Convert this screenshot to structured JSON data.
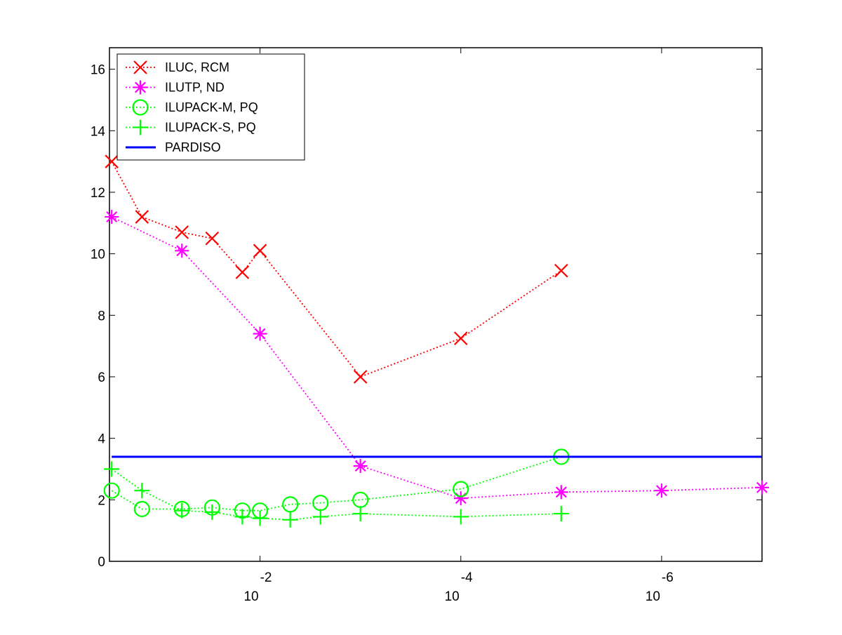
{
  "chart_data": {
    "type": "line",
    "x_scale": "log-reversed",
    "xlim": [
      0.316,
      1e-07
    ],
    "ylim": [
      0,
      16.7
    ],
    "grid": false,
    "legend_position": "top-left",
    "title": "",
    "xlabel": "",
    "ylabel": "",
    "x_ticks": [
      {
        "value": 0.01,
        "base": "10",
        "exponent": "-2"
      },
      {
        "value": 0.0001,
        "base": "10",
        "exponent": "-4"
      },
      {
        "value": 1e-06,
        "base": "10",
        "exponent": "-6"
      }
    ],
    "y_ticks": [
      0,
      2,
      4,
      6,
      8,
      10,
      12,
      14,
      16
    ],
    "y_tick_labels": [
      "0",
      "2",
      "4",
      "6",
      "8",
      "10",
      "12",
      "14",
      "16"
    ],
    "series": [
      {
        "name": "ILUC, RCM",
        "color": "#ff0000",
        "marker": "x",
        "line_style": "dotted",
        "x": [
          0.3,
          0.15,
          0.06,
          0.03,
          0.015,
          0.01,
          0.001,
          0.0001,
          1e-05
        ],
        "y": [
          13.0,
          11.2,
          10.7,
          10.5,
          9.4,
          10.1,
          6.0,
          7.25,
          9.45
        ]
      },
      {
        "name": "ILUTP,  ND",
        "color": "#ff00ff",
        "marker": "asterisk",
        "line_style": "dotted",
        "x": [
          0.3,
          0.06,
          0.01,
          0.001,
          0.0001,
          1e-05,
          1e-06,
          1e-07
        ],
        "y": [
          11.2,
          10.1,
          7.4,
          3.1,
          2.05,
          2.25,
          2.3,
          2.4
        ]
      },
      {
        "name": "ILUPACK-M, PQ",
        "color": "#00ff00",
        "marker": "circle",
        "line_style": "dotted",
        "x": [
          0.3,
          0.15,
          0.06,
          0.03,
          0.015,
          0.01,
          0.005,
          0.0025,
          0.001,
          0.0001,
          1e-05
        ],
        "y": [
          2.3,
          1.7,
          1.7,
          1.75,
          1.65,
          1.65,
          1.85,
          1.9,
          2.0,
          2.35,
          3.4
        ]
      },
      {
        "name": "ILUPACK-S, PQ",
        "color": "#00ff00",
        "marker": "plus",
        "line_style": "dotted",
        "x": [
          0.3,
          0.15,
          0.06,
          0.03,
          0.015,
          0.01,
          0.005,
          0.0025,
          0.001,
          0.0001,
          1e-05
        ],
        "y": [
          3.0,
          2.3,
          1.65,
          1.6,
          1.45,
          1.4,
          1.35,
          1.45,
          1.55,
          1.45,
          1.55
        ]
      },
      {
        "name": "PARDISO",
        "color": "#0000ff",
        "marker": "none",
        "line_style": "solid",
        "x": [
          0.3,
          1e-07
        ],
        "y": [
          3.4,
          3.4
        ]
      }
    ]
  }
}
